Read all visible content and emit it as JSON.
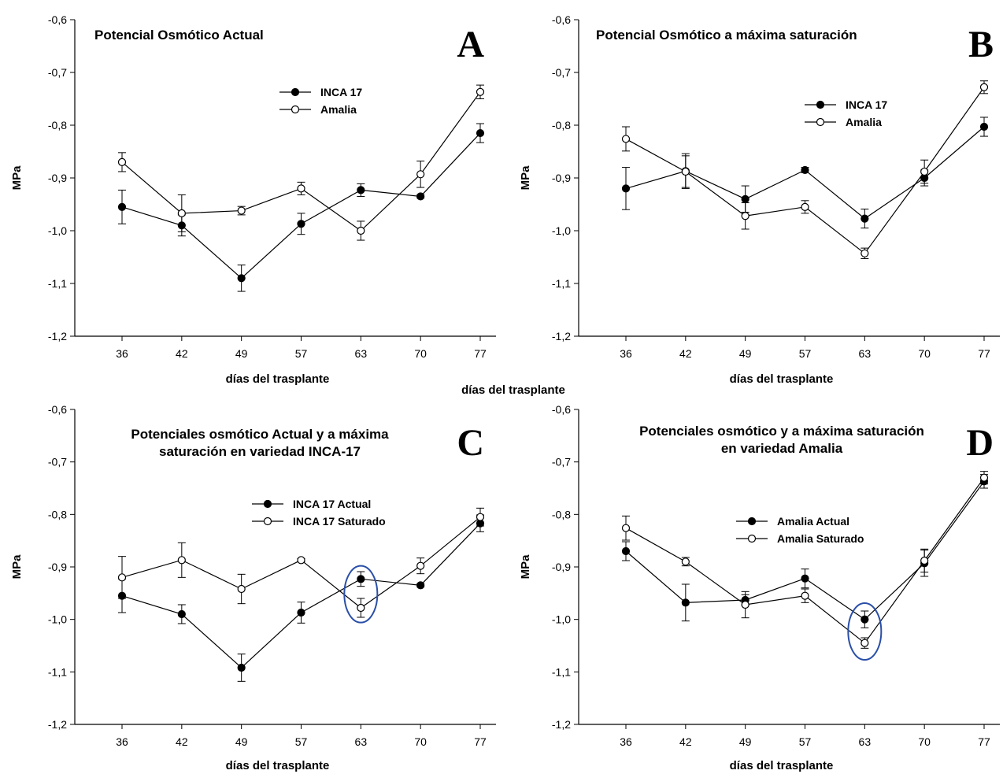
{
  "figure": {
    "shared_xlabel": "días del trasplante"
  },
  "chart_data": [
    {
      "type": "line",
      "letter": "A",
      "title": [
        "Potencial Osmótico Actual"
      ],
      "xlabel": "días del trasplante",
      "ylabel": "MPa",
      "categories": [
        "36",
        "42",
        "49",
        "57",
        "63",
        "70",
        "77"
      ],
      "ylim": [
        -1.2,
        -0.6
      ],
      "yticks": [
        "-0,6",
        "-0,7",
        "-0,8",
        "-0,9",
        "-1,0",
        "-1,1",
        "-1,2"
      ],
      "legend_position": "top-center",
      "series": [
        {
          "name": "INCA 17",
          "marker": "filled",
          "values": [
            -0.955,
            -0.99,
            -1.09,
            -0.987,
            -0.923,
            -0.935,
            -0.815
          ],
          "errors": [
            0.032,
            0.02,
            0.025,
            0.02,
            0.012,
            0.003,
            0.018
          ]
        },
        {
          "name": "Amalia",
          "marker": "open",
          "values": [
            -0.87,
            -0.967,
            -0.962,
            -0.92,
            -1.0,
            -0.893,
            -0.737
          ],
          "errors": [
            0.018,
            0.035,
            0.008,
            0.012,
            0.018,
            0.025,
            0.013
          ]
        }
      ],
      "ellipses": []
    },
    {
      "type": "line",
      "letter": "B",
      "title": [
        "Potencial Osmótico a máxima saturación"
      ],
      "xlabel": "días del trasplante",
      "ylabel": "MPa",
      "categories": [
        "36",
        "42",
        "49",
        "57",
        "63",
        "70",
        "77"
      ],
      "ylim": [
        -1.2,
        -0.6
      ],
      "yticks": [
        "-0,6",
        "-0,7",
        "-0,8",
        "-0,9",
        "-1,0",
        "-1,1",
        "-1,2"
      ],
      "legend_position": "top-right",
      "series": [
        {
          "name": "INCA 17",
          "marker": "filled",
          "values": [
            -0.92,
            -0.887,
            -0.94,
            -0.885,
            -0.977,
            -0.9,
            -0.803
          ],
          "errors": [
            0.04,
            0.033,
            0.025,
            0.005,
            0.018,
            0.015,
            0.018
          ]
        },
        {
          "name": "Amalia",
          "marker": "open",
          "values": [
            -0.826,
            -0.888,
            -0.972,
            -0.955,
            -1.043,
            -0.888,
            -0.728
          ],
          "errors": [
            0.023,
            0.03,
            0.025,
            0.012,
            0.01,
            0.022,
            0.012
          ]
        }
      ],
      "ellipses": []
    },
    {
      "type": "line",
      "letter": "C",
      "title": [
        "Potenciales osmótico Actual y a máxima",
        "saturación en variedad INCA-17"
      ],
      "xlabel": "días del trasplante",
      "ylabel": "MPa",
      "categories": [
        "36",
        "42",
        "49",
        "57",
        "63",
        "70",
        "77"
      ],
      "ylim": [
        -1.2,
        -0.6
      ],
      "yticks": [
        "-0,6",
        "-0,7",
        "-0,8",
        "-0,9",
        "-1,0",
        "-1,1",
        "-1,2"
      ],
      "legend_position": "top-right",
      "series": [
        {
          "name": "INCA 17 Actual",
          "marker": "filled",
          "values": [
            -0.955,
            -0.99,
            -1.092,
            -0.987,
            -0.923,
            -0.935,
            -0.817
          ],
          "errors": [
            0.032,
            0.018,
            0.026,
            0.02,
            0.014,
            0.003,
            0.016
          ]
        },
        {
          "name": "INCA 17 Saturado",
          "marker": "open",
          "values": [
            -0.92,
            -0.887,
            -0.942,
            -0.887,
            -0.978,
            -0.898,
            -0.805
          ],
          "errors": [
            0.04,
            0.033,
            0.028,
            0.003,
            0.018,
            0.015,
            0.017
          ]
        }
      ],
      "ellipses": [
        {
          "x": "63",
          "y": -0.952
        }
      ]
    },
    {
      "type": "line",
      "letter": "D",
      "title": [
        "Potenciales osmótico y a máxima saturación",
        "en variedad Amalia"
      ],
      "xlabel": "días del trasplante",
      "ylabel": "MPa",
      "categories": [
        "36",
        "42",
        "49",
        "57",
        "63",
        "70",
        "77"
      ],
      "ylim": [
        -1.2,
        -0.6
      ],
      "yticks": [
        "-0,6",
        "-0,7",
        "-0,8",
        "-0,9",
        "-1,0",
        "-1,1",
        "-1,2"
      ],
      "legend_position": "top-center",
      "series": [
        {
          "name": "Amalia Actual",
          "marker": "filled",
          "values": [
            -0.87,
            -0.968,
            -0.963,
            -0.922,
            -1.0,
            -0.893,
            -0.737
          ],
          "errors": [
            0.018,
            0.035,
            0.01,
            0.018,
            0.016,
            0.025,
            0.013
          ]
        },
        {
          "name": "Amalia Saturado",
          "marker": "open",
          "values": [
            -0.826,
            -0.89,
            -0.972,
            -0.955,
            -1.045,
            -0.888,
            -0.73
          ],
          "errors": [
            0.023,
            0.008,
            0.025,
            0.013,
            0.01,
            0.022,
            0.012
          ]
        }
      ],
      "ellipses": [
        {
          "x": "63",
          "y": -1.023
        }
      ]
    }
  ]
}
